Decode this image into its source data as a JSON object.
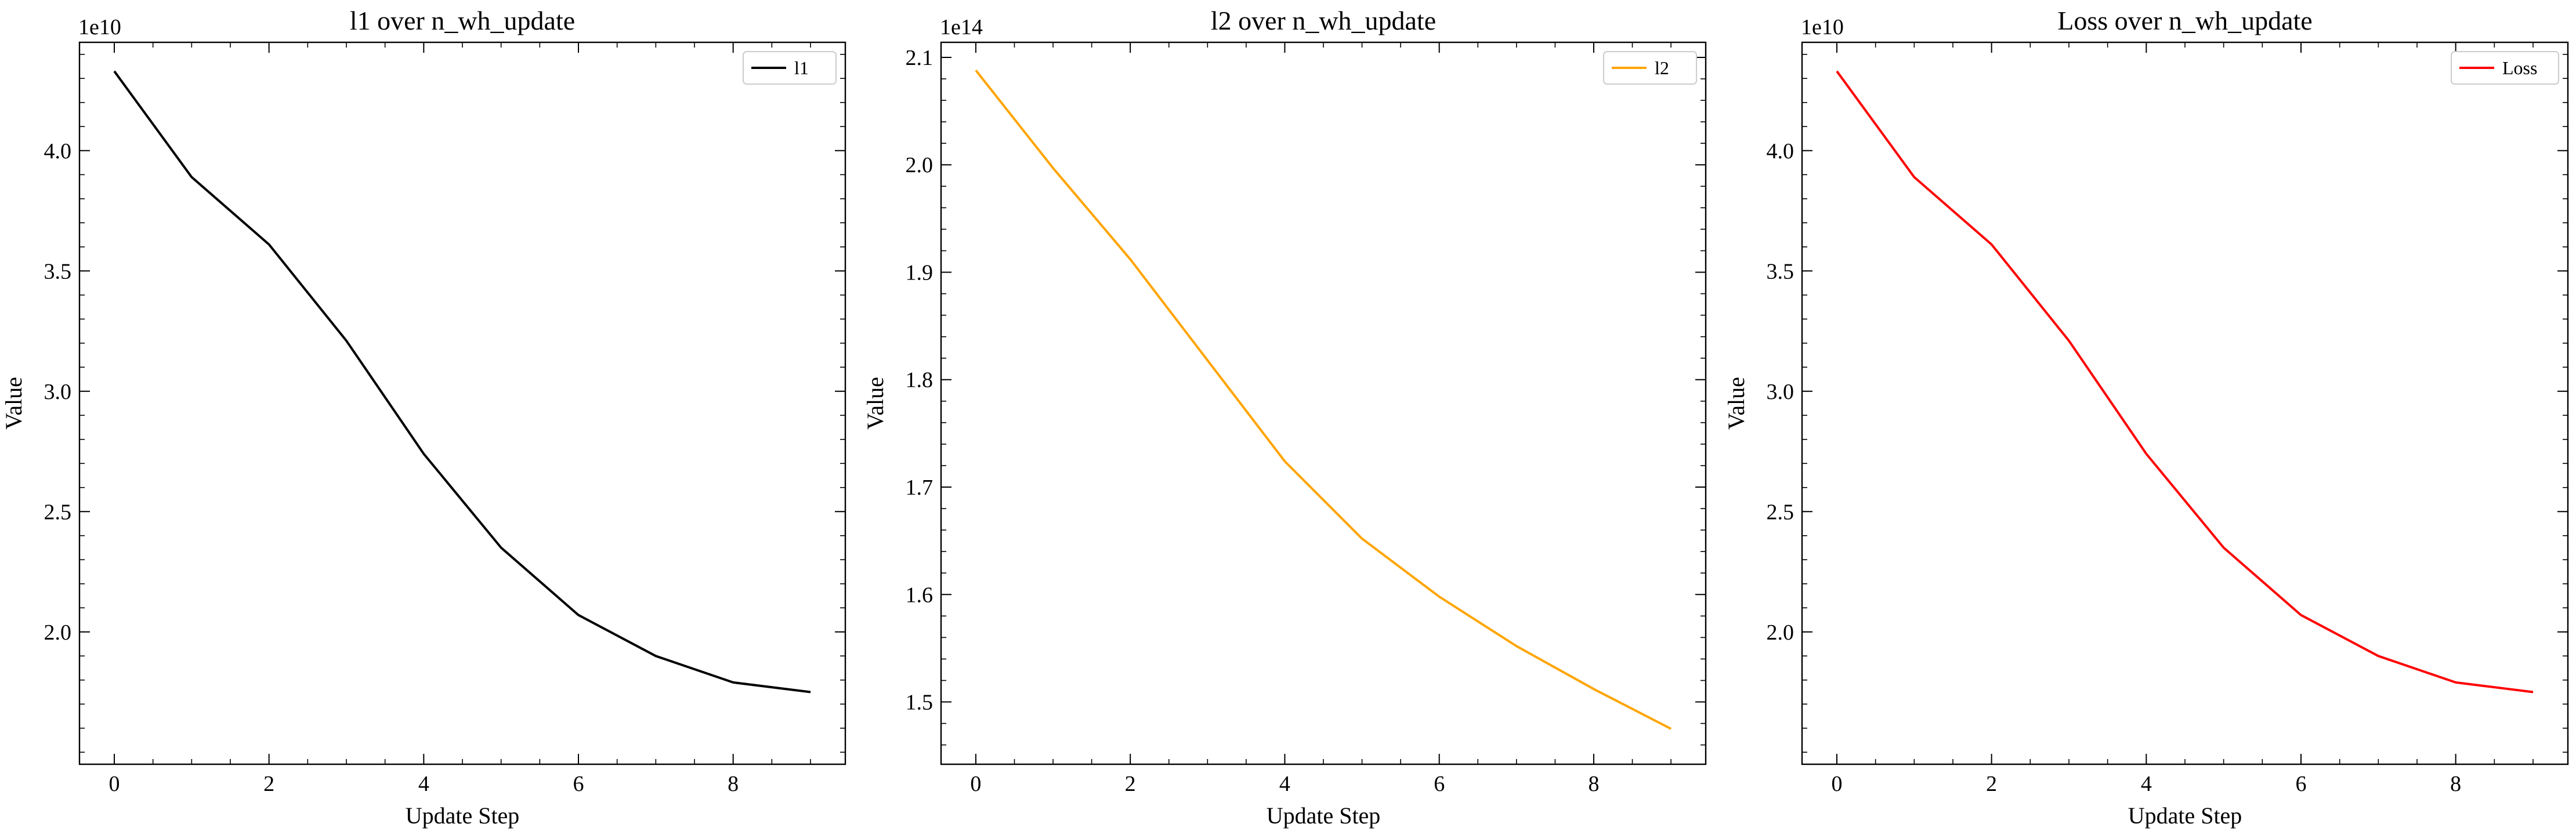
{
  "chart_data": [
    {
      "type": "line",
      "title": "l1 over n_wh_update",
      "xlabel": "Update Step",
      "ylabel": "Value",
      "y_offset_label": "1e10",
      "x": [
        0,
        1,
        2,
        3,
        4,
        5,
        6,
        7,
        8,
        9
      ],
      "xlim": [
        -0.45,
        9.45
      ],
      "ylim": [
        1.45,
        4.45
      ],
      "xticks": [
        0,
        2,
        4,
        6,
        8
      ],
      "xtick_labels": [
        "0",
        "2",
        "4",
        "6",
        "8"
      ],
      "yticks": [
        2.0,
        2.5,
        3.0,
        3.5,
        4.0
      ],
      "ytick_labels": [
        "2.0",
        "2.5",
        "3.0",
        "3.5",
        "4.0"
      ],
      "legend_position": "top-right",
      "grid": false,
      "series": [
        {
          "name": "l1",
          "color": "#000000",
          "values": [
            4.33,
            3.89,
            3.61,
            3.21,
            2.74,
            2.35,
            2.07,
            1.9,
            1.79,
            1.75
          ]
        }
      ]
    },
    {
      "type": "line",
      "title": "l2 over n_wh_update",
      "xlabel": "Update Step",
      "ylabel": "Value",
      "y_offset_label": "1e14",
      "x": [
        0,
        1,
        2,
        3,
        4,
        5,
        6,
        7,
        8,
        9
      ],
      "xlim": [
        -0.45,
        9.45
      ],
      "ylim": [
        1.442,
        2.114
      ],
      "xticks": [
        0,
        2,
        4,
        6,
        8
      ],
      "xtick_labels": [
        "0",
        "2",
        "4",
        "6",
        "8"
      ],
      "yticks": [
        1.5,
        1.6,
        1.7,
        1.8,
        1.9,
        2.0,
        2.1
      ],
      "ytick_labels": [
        "1.5",
        "1.6",
        "1.7",
        "1.8",
        "1.9",
        "2.0",
        "2.1"
      ],
      "legend_position": "top-right",
      "grid": false,
      "series": [
        {
          "name": "l2",
          "color": "#ffa500",
          "values": [
            2.088,
            1.997,
            1.912,
            1.818,
            1.724,
            1.652,
            1.598,
            1.552,
            1.512,
            1.475
          ]
        }
      ]
    },
    {
      "type": "line",
      "title": "Loss over n_wh_update",
      "xlabel": "Update Step",
      "ylabel": "Value",
      "y_offset_label": "1e10",
      "x": [
        0,
        1,
        2,
        3,
        4,
        5,
        6,
        7,
        8,
        9
      ],
      "xlim": [
        -0.45,
        9.45
      ],
      "ylim": [
        1.45,
        4.45
      ],
      "xticks": [
        0,
        2,
        4,
        6,
        8
      ],
      "xtick_labels": [
        "0",
        "2",
        "4",
        "6",
        "8"
      ],
      "yticks": [
        2.0,
        2.5,
        3.0,
        3.5,
        4.0
      ],
      "ytick_labels": [
        "2.0",
        "2.5",
        "3.0",
        "3.5",
        "4.0"
      ],
      "legend_position": "top-right",
      "grid": false,
      "series": [
        {
          "name": "Loss",
          "color": "#ff0000",
          "values": [
            4.33,
            3.89,
            3.61,
            3.21,
            2.74,
            2.35,
            2.07,
            1.9,
            1.79,
            1.75
          ]
        }
      ]
    }
  ]
}
